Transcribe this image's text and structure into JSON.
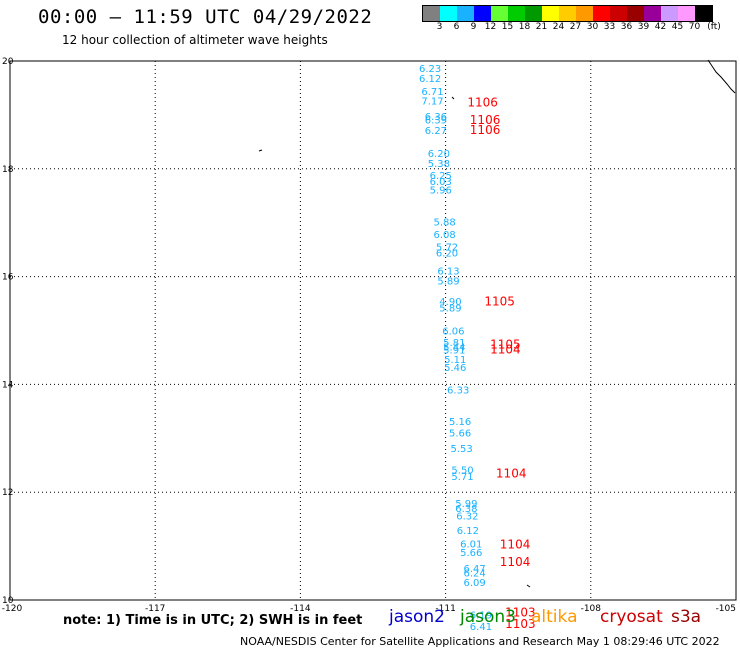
{
  "header": {
    "title": "00:00 – 11:59 UTC 04/29/2022",
    "subtitle": "12 hour collection of altimeter wave heights"
  },
  "colorbar": {
    "unit": "(ft)",
    "swatches": [
      {
        "color": "#808080",
        "label": "3"
      },
      {
        "color": "#00ffff",
        "label": "6"
      },
      {
        "color": "#1ab2ff",
        "label": "9"
      },
      {
        "color": "#0000ff",
        "label": "12"
      },
      {
        "color": "#66ff33",
        "label": "15"
      },
      {
        "color": "#00cc00",
        "label": "18"
      },
      {
        "color": "#009900",
        "label": "21"
      },
      {
        "color": "#ffff00",
        "label": "24"
      },
      {
        "color": "#ffcc00",
        "label": "27"
      },
      {
        "color": "#ff9900",
        "label": "30"
      },
      {
        "color": "#ff0000",
        "label": "33"
      },
      {
        "color": "#cc0000",
        "label": "36"
      },
      {
        "color": "#990000",
        "label": "39"
      },
      {
        "color": "#990099",
        "label": "42"
      },
      {
        "color": "#cc99ff",
        "label": "45"
      },
      {
        "color": "#ff99ff",
        "label": "70"
      },
      {
        "color": "#000000",
        "label": ""
      }
    ]
  },
  "axes": {
    "x_ticks": [
      "-120",
      "-117",
      "-114",
      "-111",
      "-108",
      "-105"
    ],
    "y_ticks": [
      "10",
      "12",
      "14",
      "16",
      "18",
      "20"
    ],
    "x_tick_values": [
      -120,
      -117,
      -114,
      -111,
      -108,
      -105
    ],
    "y_tick_values": [
      10,
      12,
      14,
      16,
      18,
      20
    ],
    "xlim": [
      -120,
      -105
    ],
    "ylim": [
      10,
      20
    ],
    "grid": "dotted"
  },
  "swh_points": [
    {
      "lon": -111.55,
      "lat": 19.8,
      "text": "6.23"
    },
    {
      "lon": -111.55,
      "lat": 19.61,
      "text": "6.12"
    },
    {
      "lon": -111.5,
      "lat": 19.37,
      "text": "6.71"
    },
    {
      "lon": -111.5,
      "lat": 19.19,
      "text": "7.17"
    },
    {
      "lon": -111.43,
      "lat": 18.91,
      "text": "6.36"
    },
    {
      "lon": -111.43,
      "lat": 18.84,
      "text": "6.39"
    },
    {
      "lon": -111.43,
      "lat": 18.65,
      "text": "6.27"
    },
    {
      "lon": -111.37,
      "lat": 18.22,
      "text": "6.20"
    },
    {
      "lon": -111.37,
      "lat": 18.03,
      "text": "5.38"
    },
    {
      "lon": -111.33,
      "lat": 17.81,
      "text": "6.25"
    },
    {
      "lon": -111.33,
      "lat": 17.7,
      "text": "6.03"
    },
    {
      "lon": -111.33,
      "lat": 17.54,
      "text": "5.96"
    },
    {
      "lon": -111.25,
      "lat": 16.95,
      "text": "5.88"
    },
    {
      "lon": -111.25,
      "lat": 16.72,
      "text": "6.08"
    },
    {
      "lon": -111.2,
      "lat": 16.48,
      "text": "5.72"
    },
    {
      "lon": -111.2,
      "lat": 16.37,
      "text": "6.20"
    },
    {
      "lon": -111.17,
      "lat": 16.04,
      "text": "6.13"
    },
    {
      "lon": -111.17,
      "lat": 15.85,
      "text": "5.89"
    },
    {
      "lon": -111.13,
      "lat": 15.47,
      "text": "4.90"
    },
    {
      "lon": -111.13,
      "lat": 15.35,
      "text": "5.89"
    },
    {
      "lon": -111.07,
      "lat": 14.93,
      "text": "6.06"
    },
    {
      "lon": -111.05,
      "lat": 14.71,
      "text": "5.81"
    },
    {
      "lon": -111.05,
      "lat": 14.63,
      "text": "5.44"
    },
    {
      "lon": -111.05,
      "lat": 14.57,
      "text": "5.91"
    },
    {
      "lon": -111.03,
      "lat": 14.4,
      "text": "5.11"
    },
    {
      "lon": -111.03,
      "lat": 14.25,
      "text": "5.46"
    },
    {
      "lon": -110.97,
      "lat": 13.83,
      "text": "6.33"
    },
    {
      "lon": -110.93,
      "lat": 13.25,
      "text": "5.16"
    },
    {
      "lon": -110.93,
      "lat": 13.03,
      "text": "5.66"
    },
    {
      "lon": -110.9,
      "lat": 12.75,
      "text": "5.53"
    },
    {
      "lon": -110.88,
      "lat": 12.35,
      "text": "5.50"
    },
    {
      "lon": -110.88,
      "lat": 12.23,
      "text": "5.71"
    },
    {
      "lon": -110.8,
      "lat": 11.73,
      "text": "5.99"
    },
    {
      "lon": -110.8,
      "lat": 11.63,
      "text": "6.38"
    },
    {
      "lon": -110.78,
      "lat": 11.49,
      "text": "6.32"
    },
    {
      "lon": -110.77,
      "lat": 11.22,
      "text": "6.12"
    },
    {
      "lon": -110.7,
      "lat": 10.97,
      "text": "6.01"
    },
    {
      "lon": -110.7,
      "lat": 10.82,
      "text": "5.66"
    },
    {
      "lon": -110.63,
      "lat": 10.52,
      "text": "6.47"
    },
    {
      "lon": -110.63,
      "lat": 10.44,
      "text": "6.24"
    },
    {
      "lon": -110.63,
      "lat": 10.26,
      "text": "6.09"
    },
    {
      "lon": -110.5,
      "lat": 9.66,
      "text": "6.19"
    },
    {
      "lon": -110.5,
      "lat": 9.44,
      "text": "6.41"
    }
  ],
  "pressure_points": [
    {
      "lon": -110.55,
      "lat": 19.16,
      "text": "1106"
    },
    {
      "lon": -110.5,
      "lat": 18.83,
      "text": "1106"
    },
    {
      "lon": -110.5,
      "lat": 18.65,
      "text": "1106"
    },
    {
      "lon": -110.2,
      "lat": 15.46,
      "text": "1105"
    },
    {
      "lon": -110.08,
      "lat": 14.67,
      "text": "1105"
    },
    {
      "lon": -110.08,
      "lat": 14.57,
      "text": "1104"
    },
    {
      "lon": -109.96,
      "lat": 12.27,
      "text": "1104"
    },
    {
      "lon": -109.88,
      "lat": 10.96,
      "text": "1104"
    },
    {
      "lon": -109.88,
      "lat": 10.63,
      "text": "1104"
    },
    {
      "lon": -109.77,
      "lat": 9.69,
      "text": "1103"
    },
    {
      "lon": -109.77,
      "lat": 9.48,
      "text": "1103"
    }
  ],
  "swh_color": "#1ab2ff",
  "pressure_color": "#ff0000",
  "note": "note:  1) Time is in UTC;  2) SWH is in feet",
  "legend": [
    {
      "label": "jason2",
      "color": "#0000cc"
    },
    {
      "label": "jason3",
      "color": "#008800"
    },
    {
      "label": "altika",
      "color": "#ff9900"
    },
    {
      "label": "cryosat",
      "color": "#cc0000"
    },
    {
      "label": "s3a",
      "color": "#990000"
    }
  ],
  "footer": "NOAA/NESDIS Center for Satellite Applications and Research    May  1 08:29:46 UTC 2022"
}
